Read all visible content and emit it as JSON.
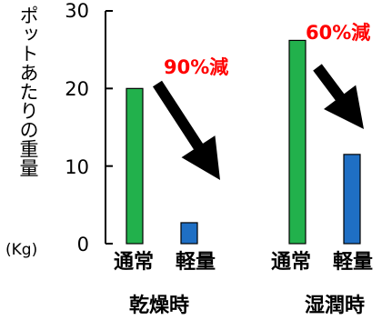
{
  "chart_data": {
    "type": "bar",
    "ylabel": "ポットあたりの重量",
    "yunit": "(Kg)",
    "ylim": [
      0,
      30
    ],
    "yticks": [
      0,
      10,
      20,
      30
    ],
    "groups": [
      {
        "name": "乾燥時",
        "bars": [
          {
            "label": "通常",
            "value": 20,
            "color": "#22b14c"
          },
          {
            "label": "軽量",
            "value": 2.7,
            "color": "#1f6fc4"
          }
        ],
        "annotation": "90%減"
      },
      {
        "name": "湿潤時",
        "bars": [
          {
            "label": "通常",
            "value": 26.2,
            "color": "#22b14c"
          },
          {
            "label": "軽量",
            "value": 11.5,
            "color": "#1f6fc4"
          }
        ],
        "annotation": "60%減"
      }
    ],
    "grid": false,
    "legend": "none"
  },
  "colors": {
    "normal": "#22b14c",
    "light": "#1f6fc4",
    "annotation": "#ff0000",
    "arrow": "#000000"
  }
}
